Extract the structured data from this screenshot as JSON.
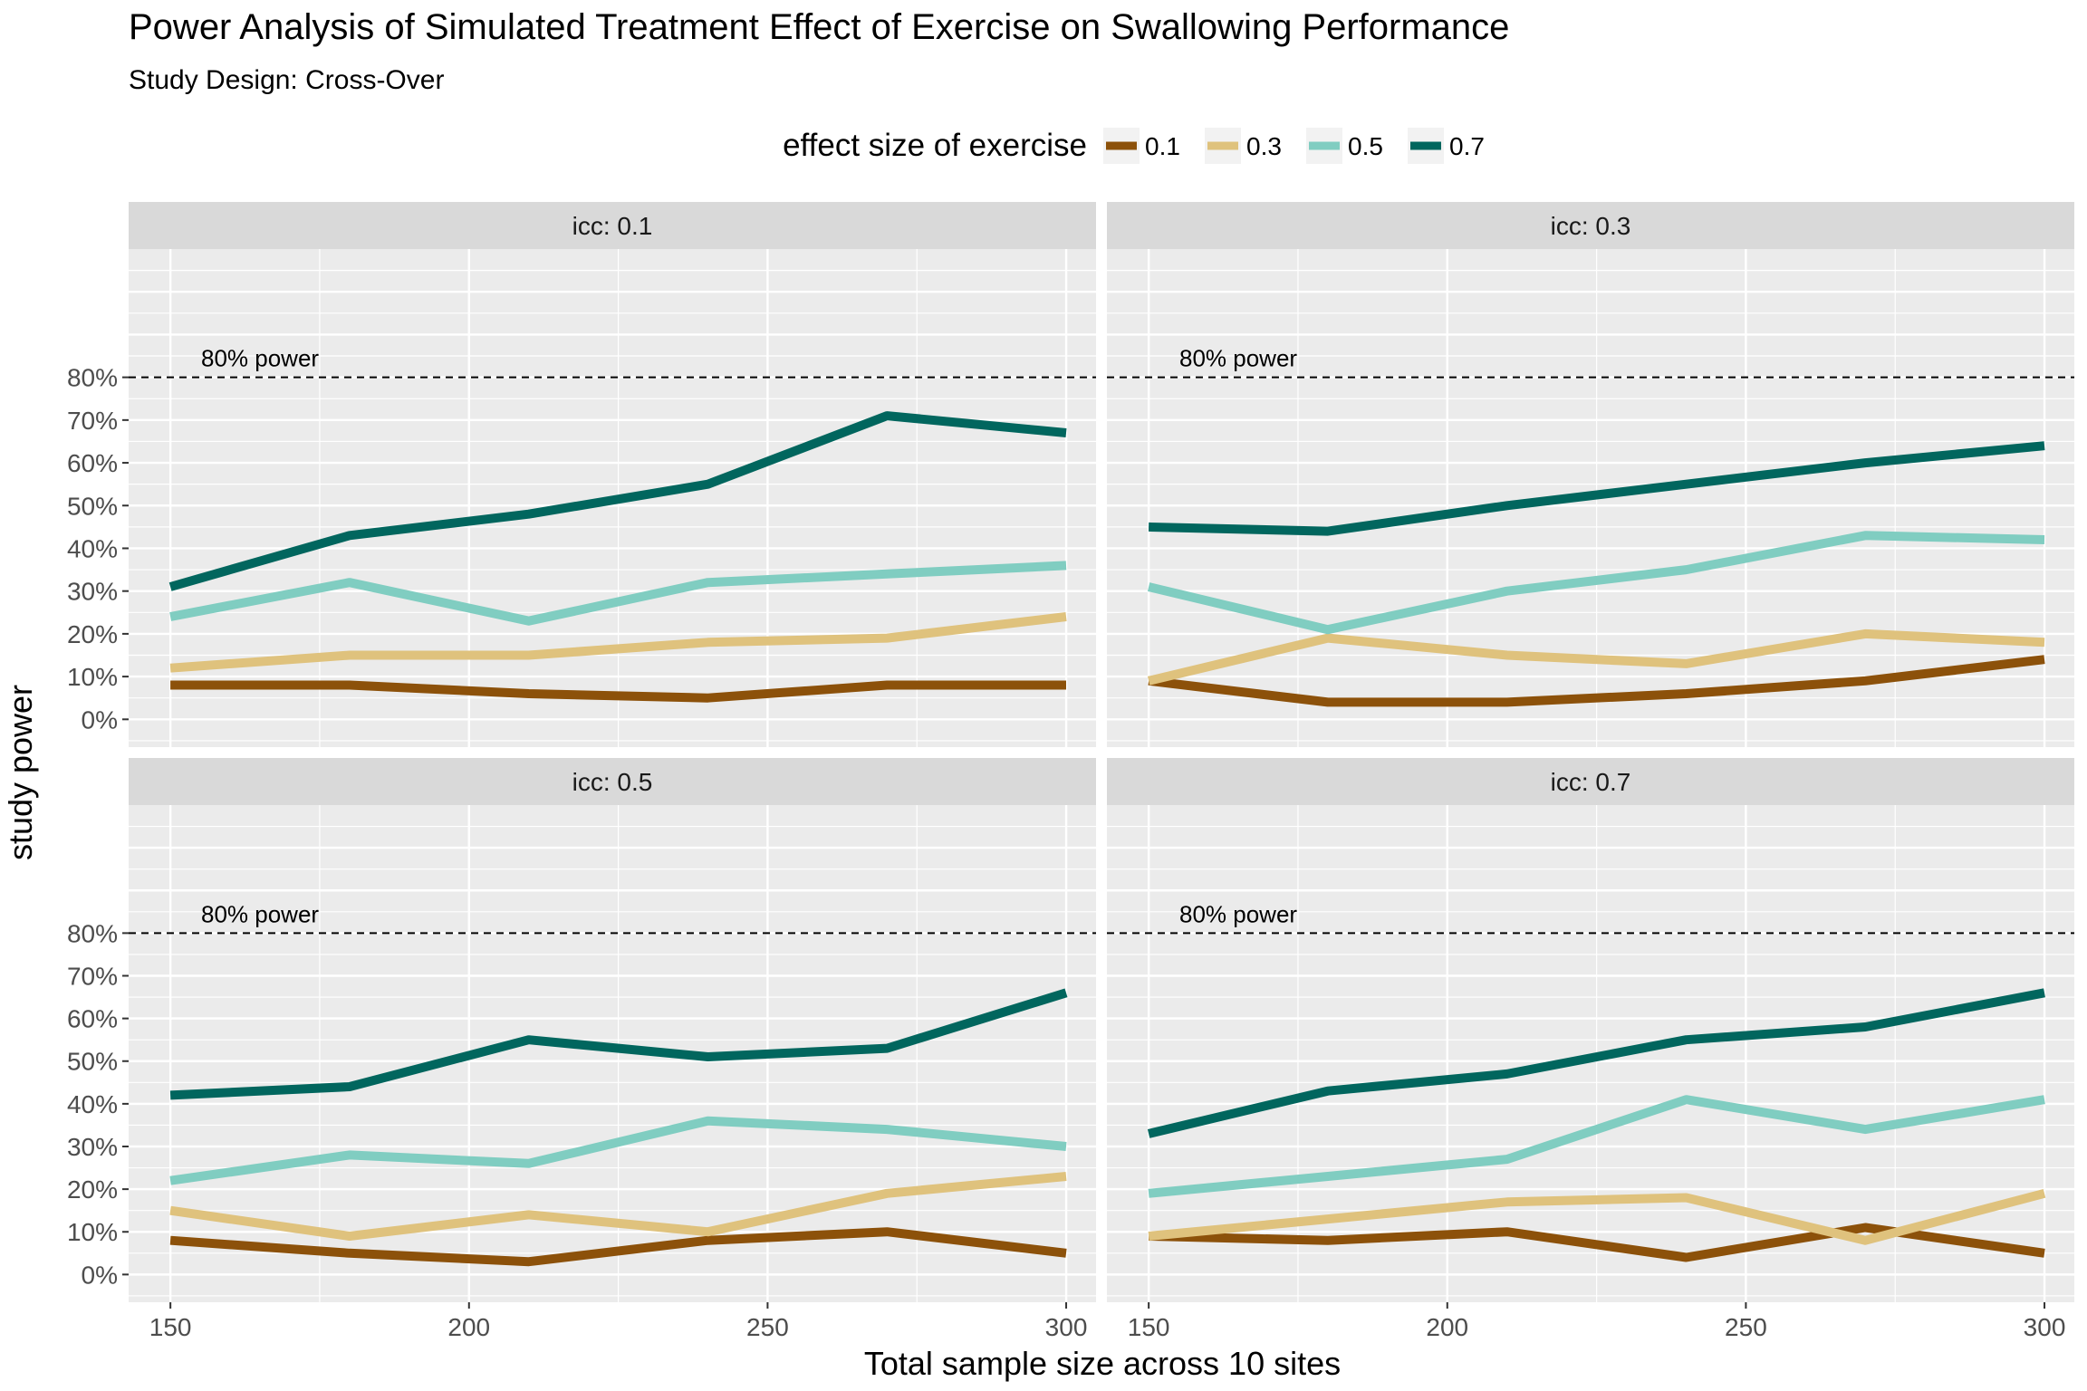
{
  "chart_data": {
    "type": "line",
    "title": "Power Analysis of Simulated Treatment Effect of Exercise on Swallowing Performance",
    "subtitle": "Study Design: Cross-Over",
    "xlabel": "Total sample size across 10 sites",
    "ylabel": "study power",
    "legend_title": "effect size of exercise",
    "legend_position": "top",
    "grid": true,
    "xlim": [
      143,
      305
    ],
    "ylim": [
      -6.5,
      110
    ],
    "x_ticks": [
      150,
      200,
      250,
      300
    ],
    "x_tick_labels": [
      "150",
      "200",
      "250",
      "300"
    ],
    "y_ticks": [
      0,
      10,
      20,
      30,
      40,
      50,
      60,
      70,
      80
    ],
    "y_tick_labels": [
      "0%",
      "10%",
      "20%",
      "30%",
      "40%",
      "50%",
      "60%",
      "70%",
      "80%"
    ],
    "reference_line": {
      "y": 80,
      "label": "80% power",
      "label_x": 165
    },
    "x": [
      150,
      180,
      210,
      240,
      270,
      300
    ],
    "series_styles": [
      {
        "name": "0.1",
        "color": "#8C510A"
      },
      {
        "name": "0.3",
        "color": "#DFC27D"
      },
      {
        "name": "0.5",
        "color": "#80CDC1"
      },
      {
        "name": "0.7",
        "color": "#01665E"
      }
    ],
    "panels": [
      {
        "label": "icc: 0.1",
        "series": [
          {
            "name": "0.1",
            "values": [
              8,
              8,
              6,
              5,
              8,
              8
            ]
          },
          {
            "name": "0.3",
            "values": [
              12,
              15,
              15,
              18,
              19,
              24
            ]
          },
          {
            "name": "0.5",
            "values": [
              24,
              32,
              23,
              32,
              34,
              36
            ]
          },
          {
            "name": "0.7",
            "values": [
              31,
              43,
              48,
              55,
              71,
              67
            ]
          }
        ]
      },
      {
        "label": "icc: 0.3",
        "series": [
          {
            "name": "0.1",
            "values": [
              9,
              4,
              4,
              6,
              9,
              14
            ]
          },
          {
            "name": "0.3",
            "values": [
              9,
              19,
              15,
              13,
              20,
              18
            ]
          },
          {
            "name": "0.5",
            "values": [
              31,
              21,
              30,
              35,
              43,
              42
            ]
          },
          {
            "name": "0.7",
            "values": [
              45,
              44,
              50,
              55,
              60,
              64
            ]
          }
        ]
      },
      {
        "label": "icc: 0.5",
        "series": [
          {
            "name": "0.1",
            "values": [
              8,
              5,
              3,
              8,
              10,
              5
            ]
          },
          {
            "name": "0.3",
            "values": [
              15,
              9,
              14,
              10,
              19,
              23
            ]
          },
          {
            "name": "0.5",
            "values": [
              22,
              28,
              26,
              36,
              34,
              30
            ]
          },
          {
            "name": "0.7",
            "values": [
              42,
              44,
              55,
              51,
              53,
              66
            ]
          }
        ]
      },
      {
        "label": "icc: 0.7",
        "series": [
          {
            "name": "0.1",
            "values": [
              9,
              8,
              10,
              4,
              11,
              5
            ]
          },
          {
            "name": "0.3",
            "values": [
              9,
              13,
              17,
              18,
              8,
              19
            ]
          },
          {
            "name": "0.5",
            "values": [
              19,
              23,
              27,
              41,
              34,
              41
            ]
          },
          {
            "name": "0.7",
            "values": [
              33,
              43,
              47,
              55,
              58,
              66
            ]
          }
        ]
      }
    ]
  }
}
